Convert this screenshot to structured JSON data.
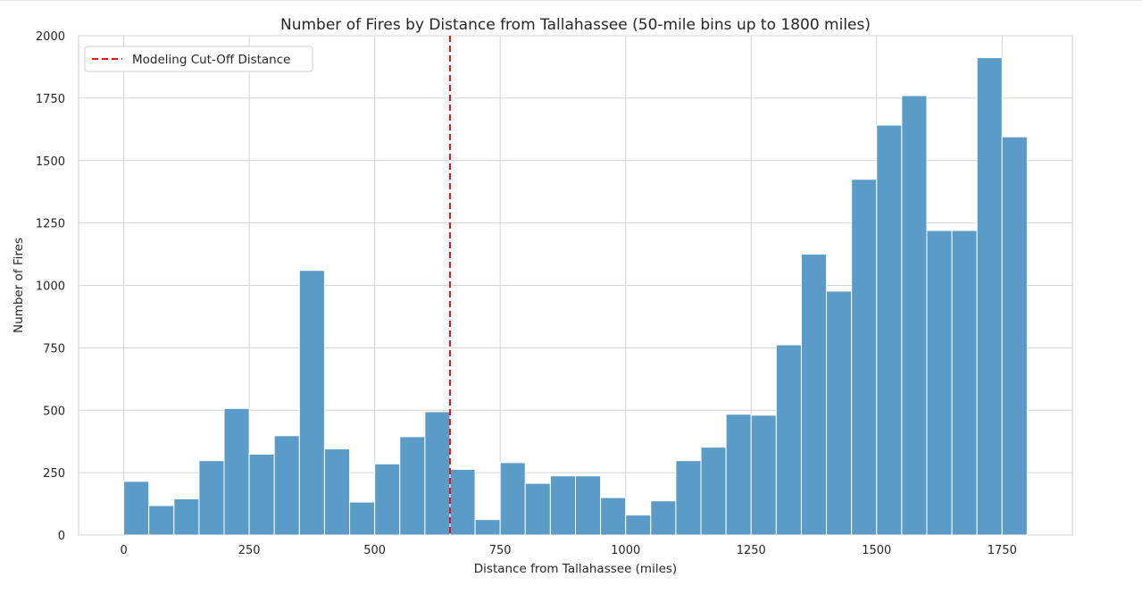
{
  "chart_data": {
    "type": "bar",
    "title": "Number of Fires by Distance from Tallahassee (50-mile bins up to 1800 miles)",
    "xlabel": "Distance from Tallahassee (miles)",
    "ylabel": "Number of Fires",
    "xlim": [
      -90,
      1890
    ],
    "ylim": [
      0,
      2000
    ],
    "xticks": [
      0,
      250,
      500,
      750,
      1000,
      1250,
      1500,
      1750
    ],
    "yticks": [
      0,
      250,
      500,
      750,
      1000,
      1250,
      1500,
      1750,
      2000
    ],
    "bin_width": 50,
    "bin_starts": [
      0,
      50,
      100,
      150,
      200,
      250,
      300,
      350,
      400,
      450,
      500,
      550,
      600,
      650,
      700,
      750,
      800,
      850,
      900,
      950,
      1000,
      1050,
      1100,
      1150,
      1200,
      1250,
      1300,
      1350,
      1400,
      1450,
      1500,
      1550,
      1600,
      1650,
      1700,
      1750
    ],
    "values": [
      215,
      118,
      145,
      298,
      507,
      324,
      398,
      1060,
      345,
      132,
      285,
      394,
      494,
      263,
      62,
      290,
      207,
      237,
      237,
      150,
      80,
      137,
      298,
      352,
      484,
      480,
      762,
      1125,
      977,
      1425,
      1642,
      1760,
      1220,
      1220,
      1912,
      1595
    ],
    "bar_color": "#5a9bc7",
    "grid": true,
    "cutoff_line": {
      "x": 650,
      "color": "#ee1111",
      "style": "dashed",
      "label": "Modeling Cut-Off Distance"
    },
    "legend": {
      "position": "top-left"
    }
  }
}
